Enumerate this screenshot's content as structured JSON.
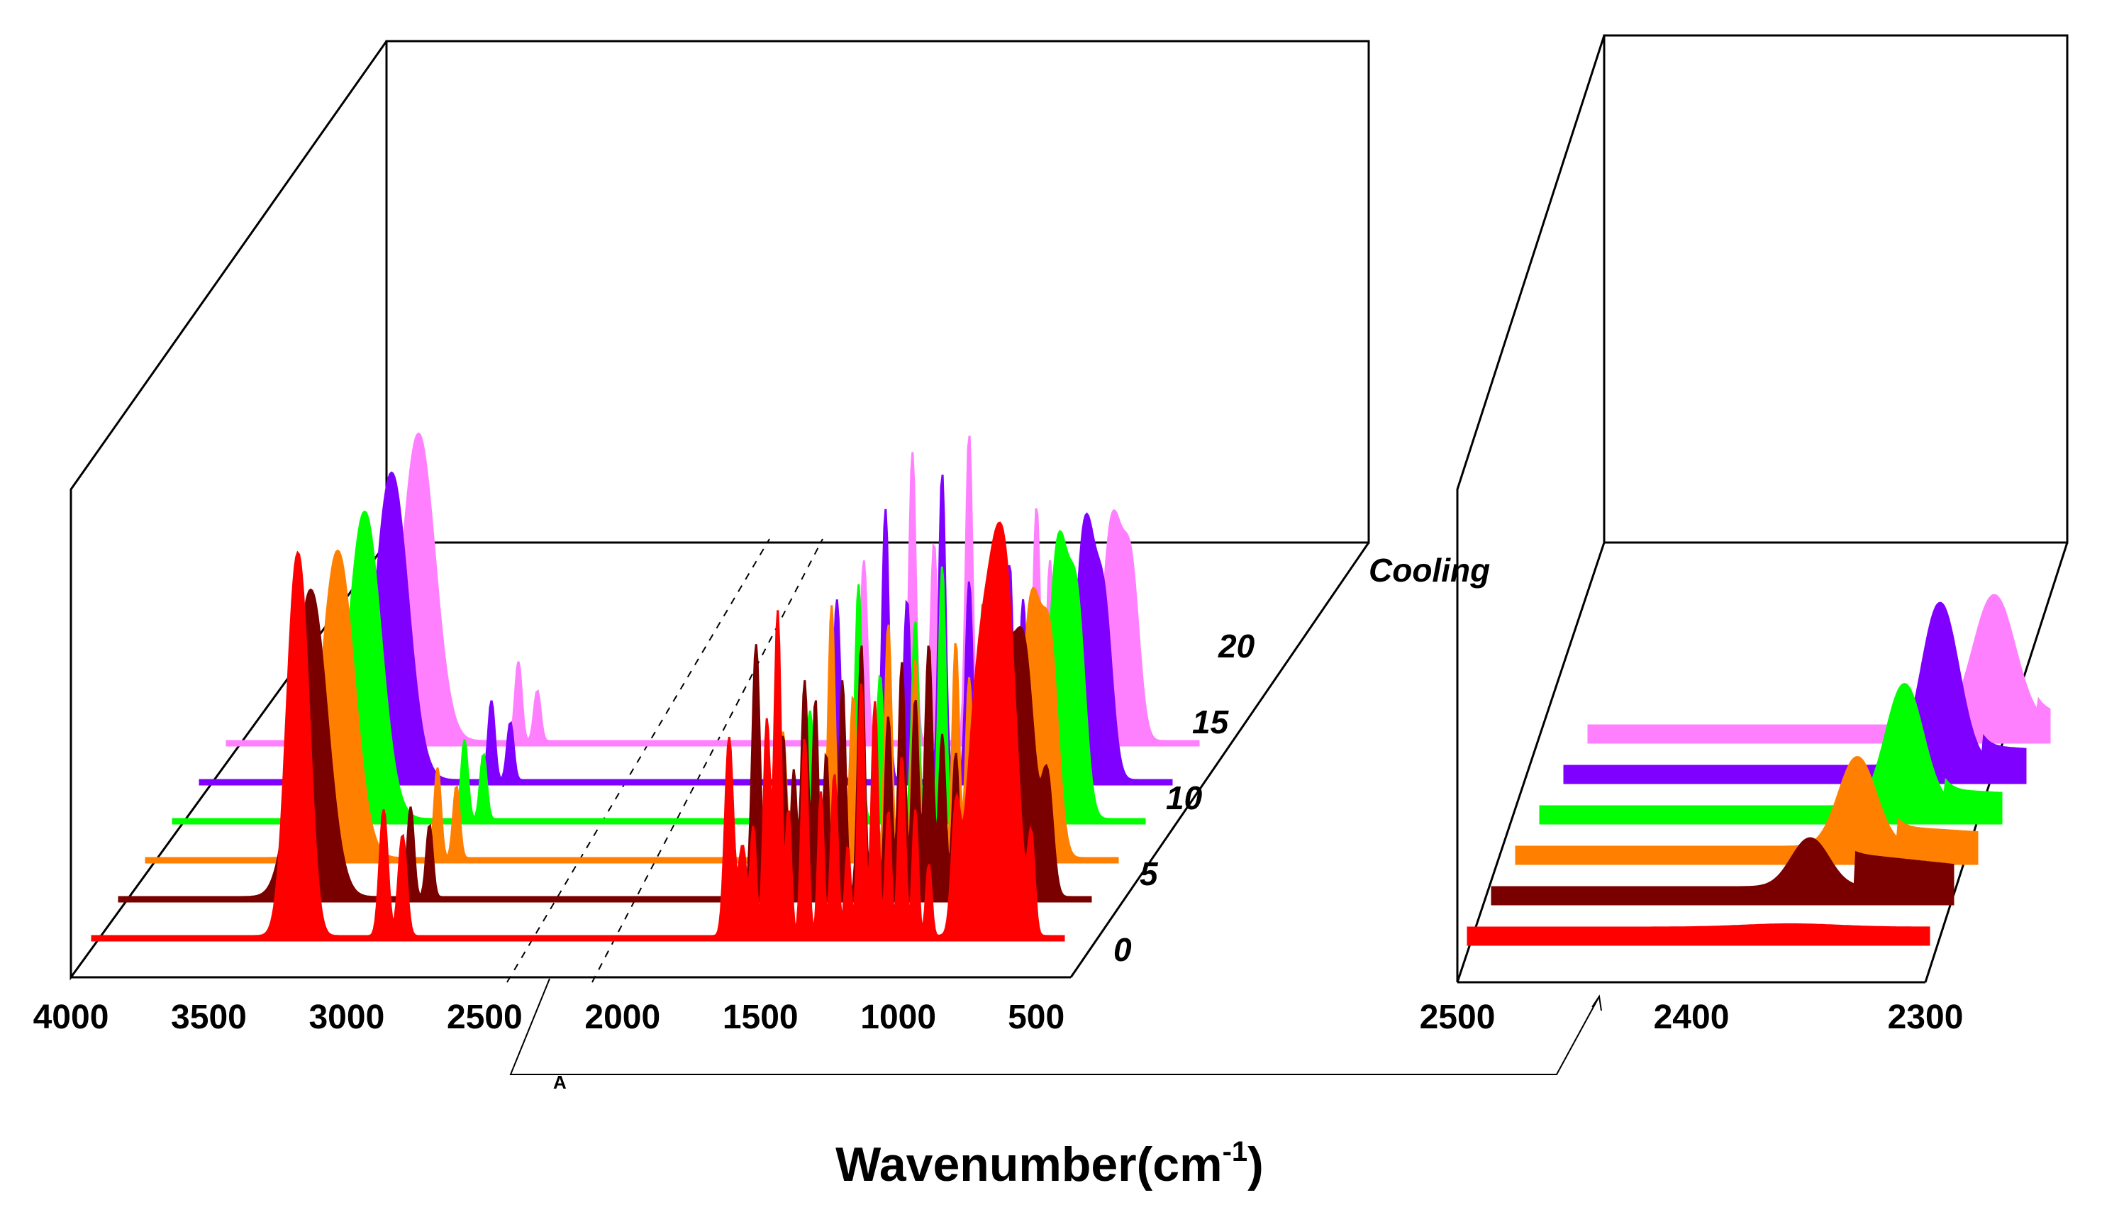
{
  "chart_data": [
    {
      "type": "area",
      "panel": "full-range",
      "xlabel": "Wavenumber(cm-1)",
      "xlim": [
        4000,
        400
      ],
      "x_ticks": [
        "4000",
        "3500",
        "3000",
        "2500",
        "2000",
        "1500",
        "1000",
        "500"
      ],
      "series": [
        {
          "name": "0",
          "color": "#ff0000",
          "peaks": [
            [
              3250,
              0.85,
              35
            ],
            [
              3210,
              0.4,
              30
            ],
            [
              2920,
              0.35,
              15
            ],
            [
              2850,
              0.28,
              15
            ],
            [
              1640,
              0.55,
              15
            ],
            [
              1590,
              0.25,
              15
            ],
            [
              1550,
              0.3,
              10
            ],
            [
              1500,
              0.6,
              12
            ],
            [
              1460,
              0.9,
              12
            ],
            [
              1420,
              0.35,
              10
            ],
            [
              1360,
              0.55,
              12
            ],
            [
              1300,
              0.4,
              10
            ],
            [
              1250,
              0.45,
              12
            ],
            [
              1200,
              0.25,
              10
            ],
            [
              1150,
              0.7,
              12
            ],
            [
              1100,
              0.65,
              12
            ],
            [
              1050,
              0.35,
              10
            ],
            [
              1000,
              0.5,
              12
            ],
            [
              950,
              0.35,
              10
            ],
            [
              900,
              0.2,
              10
            ],
            [
              800,
              0.3,
              15
            ],
            [
              720,
              0.6,
              40
            ],
            [
              650,
              0.8,
              40
            ],
            [
              600,
              0.55,
              35
            ],
            [
              520,
              0.25,
              12
            ]
          ]
        },
        {
          "name": "5",
          "color": "#7a0000",
          "peaks": [
            [
              3290,
              0.85,
              60
            ],
            [
              2920,
              0.25,
              12
            ],
            [
              2850,
              0.2,
              12
            ],
            [
              1640,
              0.7,
              14
            ],
            [
              1590,
              0.3,
              10
            ],
            [
              1540,
              0.45,
              12
            ],
            [
              1500,
              0.35,
              10
            ],
            [
              1460,
              0.6,
              12
            ],
            [
              1420,
              0.55,
              10
            ],
            [
              1380,
              0.4,
              10
            ],
            [
              1320,
              0.6,
              12
            ],
            [
              1250,
              0.7,
              12
            ],
            [
              1200,
              0.4,
              10
            ],
            [
              1150,
              0.5,
              12
            ],
            [
              1100,
              0.65,
              12
            ],
            [
              1050,
              0.55,
              12
            ],
            [
              1000,
              0.7,
              14
            ],
            [
              950,
              0.45,
              12
            ],
            [
              900,
              0.4,
              12
            ],
            [
              800,
              0.3,
              14
            ],
            [
              720,
              0.5,
              30
            ],
            [
              650,
              0.7,
              40
            ],
            [
              560,
              0.3,
              20
            ]
          ]
        },
        {
          "name": "10",
          "color": "#ff8000",
          "peaks": [
            [
              3290,
              0.85,
              60
            ],
            [
              2920,
              0.25,
              12
            ],
            [
              2850,
              0.2,
              12
            ],
            [
              1640,
              0.35,
              12
            ],
            [
              1460,
              0.7,
              12
            ],
            [
              1380,
              0.45,
              12
            ],
            [
              1250,
              0.65,
              12
            ],
            [
              1150,
              0.55,
              12
            ],
            [
              1100,
              0.4,
              10
            ],
            [
              1000,
              0.6,
              12
            ],
            [
              950,
              0.5,
              12
            ],
            [
              900,
              0.35,
              12
            ],
            [
              800,
              0.5,
              15
            ],
            [
              720,
              0.7,
              35
            ],
            [
              650,
              0.55,
              30
            ]
          ]
        },
        {
          "name": "15",
          "color": "#00ff00",
          "peaks": [
            [
              3290,
              0.85,
              60
            ],
            [
              2920,
              0.22,
              12
            ],
            [
              2850,
              0.18,
              12
            ],
            [
              1640,
              0.3,
              12
            ],
            [
              1460,
              0.65,
              12
            ],
            [
              1380,
              0.4,
              12
            ],
            [
              1250,
              0.55,
              12
            ],
            [
              1150,
              0.7,
              12
            ],
            [
              1100,
              0.35,
              10
            ],
            [
              1000,
              0.6,
              12
            ],
            [
              950,
              0.45,
              12
            ],
            [
              900,
              0.35,
              12
            ],
            [
              800,
              0.45,
              15
            ],
            [
              720,
              0.75,
              35
            ],
            [
              650,
              0.55,
              30
            ]
          ]
        },
        {
          "name": "20",
          "color": "#8000ff",
          "peaks": [
            [
              3290,
              0.85,
              60
            ],
            [
              2920,
              0.22,
              12
            ],
            [
              2850,
              0.16,
              12
            ],
            [
              1640,
              0.5,
              12
            ],
            [
              1460,
              0.75,
              12
            ],
            [
              1380,
              0.5,
              12
            ],
            [
              1250,
              0.85,
              12
            ],
            [
              1150,
              0.55,
              12
            ],
            [
              1100,
              0.4,
              10
            ],
            [
              1000,
              0.6,
              12
            ],
            [
              950,
              0.5,
              12
            ],
            [
              900,
              0.4,
              12
            ],
            [
              800,
              0.55,
              15
            ],
            [
              720,
              0.7,
              35
            ],
            [
              650,
              0.45,
              30
            ]
          ]
        },
        {
          "name": "Cooling",
          "color": "#ff80ff",
          "peaks": [
            [
              3290,
              0.85,
              60
            ],
            [
              2920,
              0.22,
              12
            ],
            [
              2850,
              0.14,
              12
            ],
            [
              1640,
              0.5,
              12
            ],
            [
              1460,
              0.8,
              12
            ],
            [
              1380,
              0.55,
              12
            ],
            [
              1250,
              0.85,
              12
            ],
            [
              1150,
              0.55,
              12
            ],
            [
              1100,
              0.45,
              10
            ],
            [
              1000,
              0.65,
              12
            ],
            [
              950,
              0.5,
              12
            ],
            [
              900,
              0.4,
              12
            ],
            [
              800,
              0.55,
              15
            ],
            [
              720,
              0.6,
              35
            ],
            [
              650,
              0.45,
              30
            ]
          ]
        }
      ]
    },
    {
      "type": "area",
      "panel": "zoom",
      "xlim": [
        2500,
        2300
      ],
      "x_ticks": [
        "2500",
        "2400",
        "2300"
      ],
      "series": [
        {
          "name": "0",
          "color": "#ff0000",
          "peaks": [
            [
              2360,
              0.02,
              20
            ]
          ],
          "step_at": null,
          "step": 0
        },
        {
          "name": "5",
          "color": "#7a0000",
          "peaks": [
            [
              2362,
              0.3,
              8
            ]
          ],
          "step_at": 2342,
          "step": 0.2
        },
        {
          "name": "10",
          "color": "#ff8000",
          "peaks": [
            [
              2352,
              0.55,
              8
            ]
          ],
          "step_at": 2334,
          "step": 0.12
        },
        {
          "name": "15",
          "color": "#00ff00",
          "peaks": [
            [
              2342,
              0.75,
              8
            ]
          ],
          "step_at": 2324,
          "step": 0.1
        },
        {
          "name": "20",
          "color": "#8000ff",
          "peaks": [
            [
              2337,
              1.0,
              8
            ]
          ],
          "step_at": 2318,
          "step": 0.12
        },
        {
          "name": "Cooling",
          "color": "#ff80ff",
          "peaks": [
            [
              2324,
              0.8,
              9
            ]
          ],
          "step_at": 2305,
          "step": 0.08
        }
      ]
    }
  ],
  "series_labels": [
    "0",
    "5",
    "10",
    "15",
    "20",
    "Cooling"
  ],
  "axis_title": {
    "main": "Wavenumber(cm",
    "sup": "-1",
    "close": ")"
  },
  "marker_letter": "A"
}
